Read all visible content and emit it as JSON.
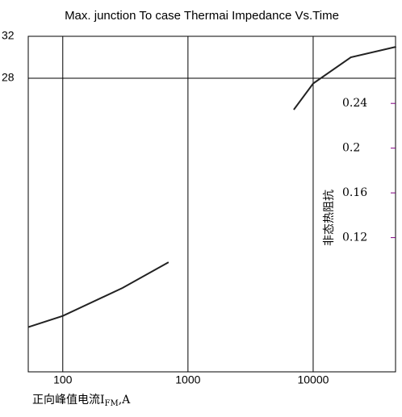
{
  "chart_data": {
    "type": "line",
    "title": "Max. junction To case Thermai Impedance Vs.Time",
    "x_label": {
      "text": "正向峰值电流I",
      "sub": "FM",
      "after": ",A"
    },
    "y2_label": "非态热阻抗",
    "xlog": true,
    "xlim": [
      53,
      45500
    ],
    "xticks": [
      100,
      1000,
      10000
    ],
    "ylim": [
      0,
      32
    ],
    "yticks": [
      28,
      32
    ],
    "y2lim": [
      0,
      0.3
    ],
    "y2ticks": [
      0.12,
      0.16,
      0.2,
      0.24
    ],
    "grid": true,
    "series": [
      {
        "color": "#222222",
        "x": [
          7000,
          10000,
          20000,
          46000
        ],
        "values": [
          25,
          27.5,
          30,
          31
        ]
      },
      {
        "color": "#222222",
        "axis": "y2",
        "x": [
          53,
          100,
          300,
          700
        ],
        "values": [
          0.04,
          0.05,
          0.075,
          0.098
        ]
      }
    ]
  }
}
